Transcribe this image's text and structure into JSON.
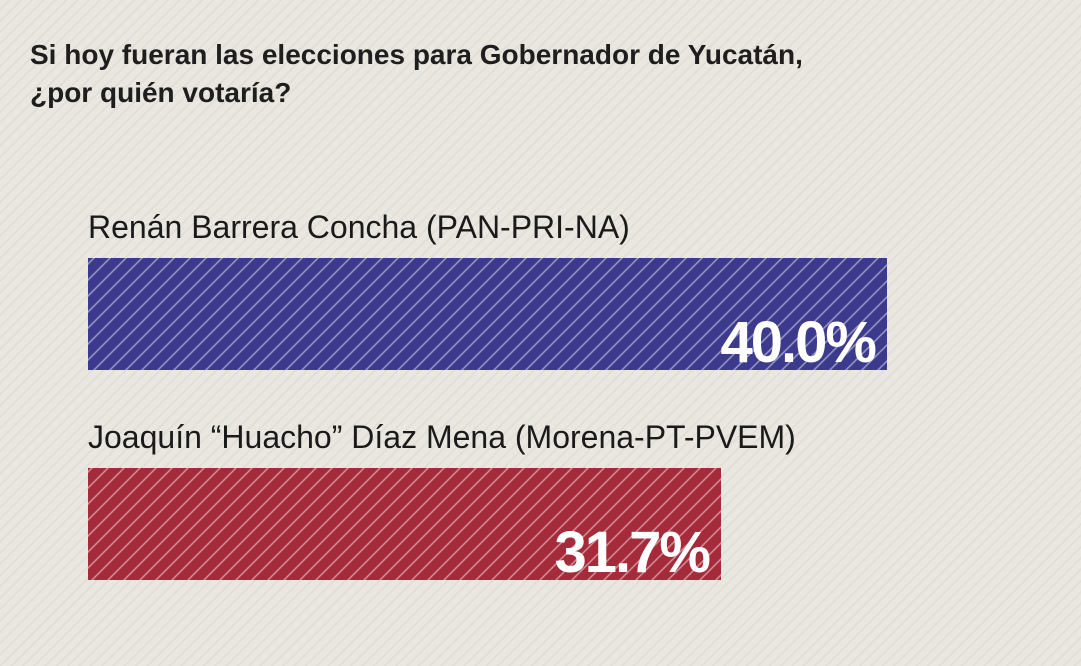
{
  "chart_data": {
    "type": "bar",
    "orientation": "horizontal",
    "title": [
      "Si hoy fueran las elecciones para Gobernador de Yucatán,",
      "¿por quién votaría?"
    ],
    "categories": [
      "Renán Barrera Concha (PAN-PRI-NA)",
      "Joaquín “Huacho” Díaz Mena (Morena-PT-PVEM)"
    ],
    "values": [
      40.0,
      31.7
    ],
    "value_labels": [
      "40.0%",
      "31.7%"
    ],
    "colors": [
      "#3b3a8c",
      "#a52a3a"
    ],
    "xlim": [
      0,
      47.05
    ],
    "grid": false,
    "legend": "none"
  }
}
